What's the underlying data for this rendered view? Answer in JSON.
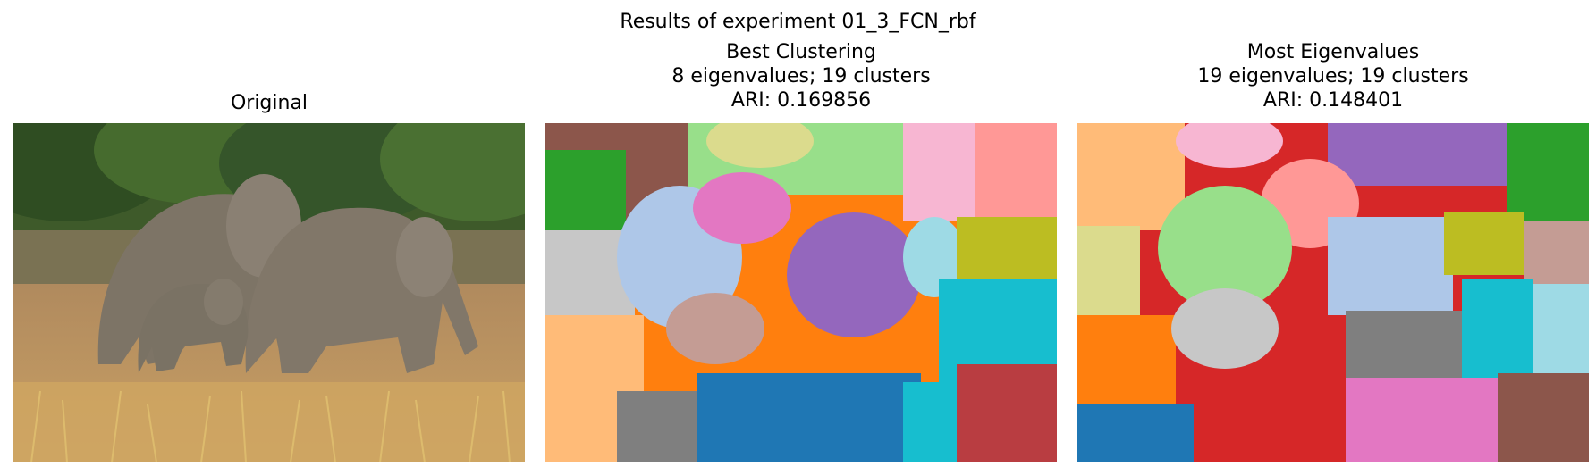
{
  "figure": {
    "suptitle": "Results of experiment 01_3_FCN_rbf",
    "panels": [
      {
        "title_lines": [
          "Original"
        ],
        "image": "photo-elephants"
      },
      {
        "title_lines": [
          "Best Clustering",
          "8 eigenvalues; 19 clusters",
          "ARI: 0.169856"
        ],
        "image": "cluster-map-best"
      },
      {
        "title_lines": [
          "Most Eigenvalues",
          "19 eigenvalues; 19 clusters",
          "ARI: 0.148401"
        ],
        "image": "cluster-map-most"
      }
    ]
  }
}
